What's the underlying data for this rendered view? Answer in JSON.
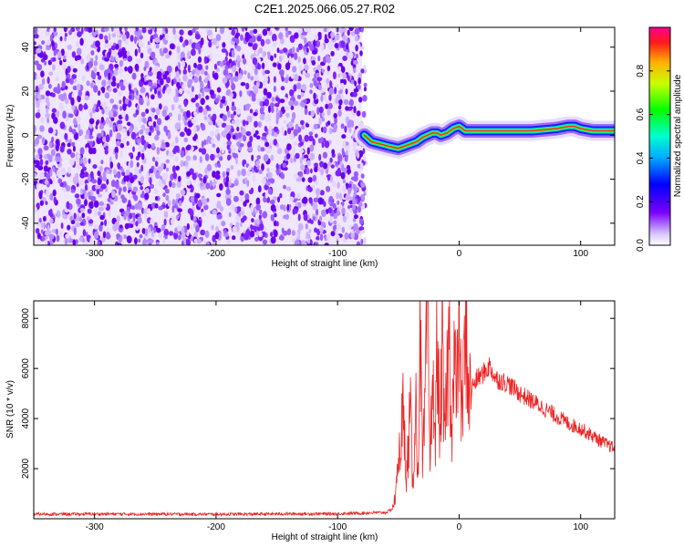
{
  "title": "C2E1.2025.066.05.27.R02",
  "colors": {
    "snr_line": "#ee2222",
    "scatter_dense": "#6a00ee",
    "scatter_light": "#cdb0ff",
    "signal_core": "#ff2a2a"
  },
  "chart_data": [
    {
      "type": "heatmap",
      "name": "spectrogram",
      "xlabel": "Height of straight line (km)",
      "ylabel": "Frequency (Hz)",
      "xlim": [
        -350,
        128
      ],
      "ylim": [
        -50,
        49
      ],
      "x_ticks": [
        -300,
        -200,
        -100,
        0,
        100
      ],
      "x_tick_labels": [
        "-300",
        "-200",
        "-100",
        "0",
        "100"
      ],
      "y_ticks": [
        -40,
        -20,
        0,
        20,
        40
      ],
      "y_tick_labels": [
        "-40",
        "-20",
        "0",
        "20",
        "40"
      ],
      "noise_region_x": [
        -350,
        -80
      ],
      "signal_ridge": {
        "x": [
          -78,
          -72,
          -65,
          -58,
          -50,
          -45,
          -40,
          -35,
          -30,
          -26,
          -22,
          -18,
          -15,
          -10,
          -5,
          0,
          5,
          20,
          40,
          60,
          80,
          90,
          95,
          100,
          110,
          128
        ],
        "y": [
          0,
          -3,
          -4,
          -5,
          -6,
          -5,
          -4,
          -3,
          -1,
          0,
          1,
          1,
          0,
          1,
          3,
          4,
          2,
          2,
          2,
          2,
          3,
          4,
          4,
          3,
          2,
          2
        ]
      },
      "colorbar": {
        "label": "Normalized spectral amplitude",
        "range": [
          0,
          1
        ],
        "ticks": [
          0.0,
          0.2,
          0.4,
          0.6,
          0.8
        ],
        "tick_labels": [
          "0.0",
          "0.2",
          "0.4",
          "0.6",
          "0.8"
        ]
      },
      "grid": false
    },
    {
      "type": "line",
      "name": "snr",
      "xlabel": "Height of straight line (km)",
      "ylabel": "SNR (10 * v/v)",
      "xlim": [
        -350,
        128
      ],
      "ylim": [
        0,
        8700
      ],
      "x_ticks": [
        -300,
        -200,
        -100,
        0,
        100
      ],
      "x_tick_labels": [
        "-300",
        "-200",
        "-100",
        "0",
        "100"
      ],
      "y_ticks": [
        2000,
        4000,
        6000,
        8000
      ],
      "y_tick_labels": [
        "2000",
        "4000",
        "6000",
        "8000"
      ],
      "series": [
        {
          "x": [
            -350,
            -300,
            -250,
            -200,
            -150,
            -100,
            -60,
            -55,
            -52,
            -50,
            -48,
            -46,
            -44,
            -42,
            -40,
            -38,
            -36,
            -34,
            -32,
            -30,
            -28,
            -26,
            -24,
            -22,
            -20,
            -18,
            -16,
            -14,
            -12,
            -10,
            -8,
            -6,
            -4,
            -2,
            0,
            2,
            4,
            6,
            8,
            10,
            15,
            20,
            25,
            30,
            40,
            50,
            60,
            70,
            80,
            90,
            100,
            110,
            120,
            128
          ],
          "y": [
            180,
            190,
            185,
            180,
            190,
            200,
            250,
            400,
            900,
            3200,
            1500,
            6800,
            1000,
            2800,
            4300,
            900,
            5200,
            1600,
            7500,
            1700,
            4600,
            8700,
            2000,
            6200,
            2400,
            7900,
            2800,
            6800,
            3000,
            5600,
            7300,
            3600,
            6400,
            4600,
            8700,
            3900,
            6000,
            7800,
            4700,
            5200,
            5600,
            5800,
            6100,
            5600,
            5400,
            5000,
            4700,
            4400,
            4100,
            3800,
            3600,
            3300,
            3000,
            2800
          ]
        }
      ],
      "grid": false
    }
  ]
}
